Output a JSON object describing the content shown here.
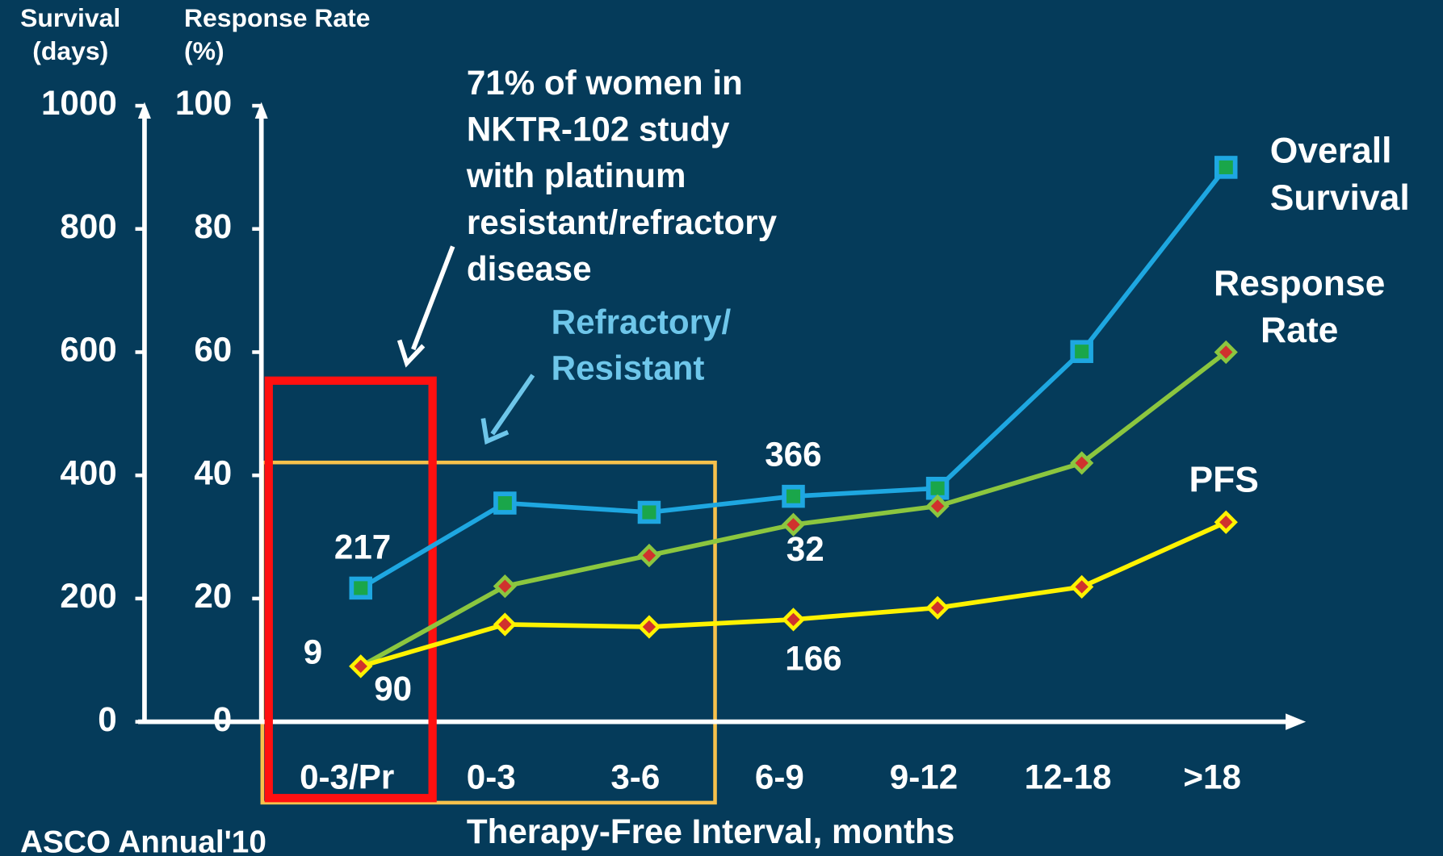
{
  "chart_data": {
    "type": "line",
    "ylabel": "Survival (days)",
    "y2label": "Response Rate (%)",
    "xlabel": "Therapy-Free Interval, months",
    "categories": [
      "0-3/Pr",
      "0-3",
      "3-6",
      "6-9",
      "9-12",
      "12-18",
      ">18"
    ],
    "ylim": [
      0,
      1000
    ],
    "yticks": [
      0,
      200,
      400,
      600,
      800,
      1000
    ],
    "y2lim": [
      0,
      100
    ],
    "y2ticks": [
      0,
      20,
      40,
      60,
      80,
      100
    ],
    "series": [
      {
        "name": "Overall Survival",
        "color": "#1ea7e1",
        "values": [
          217,
          355,
          340,
          366,
          379,
          601,
          900
        ]
      },
      {
        "name": "Response Rate",
        "color": "#8cc63f",
        "axis": "y2",
        "values": [
          9,
          22,
          27,
          32,
          35,
          42,
          60
        ]
      },
      {
        "name": "PFS",
        "color": "#fff200",
        "values": [
          90,
          158,
          154,
          166,
          185,
          219,
          324
        ]
      }
    ],
    "annotations": [
      {
        "lines": [
          "71% of women in",
          "NKTR-102 study",
          "with platinum",
          "resistant/refractory",
          "disease"
        ]
      },
      {
        "lines": [
          "Refractory/",
          "Resistant"
        ]
      }
    ]
  },
  "logo": "ASCO Annual'10"
}
